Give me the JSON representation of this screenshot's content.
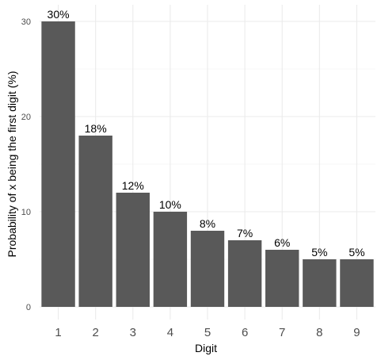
{
  "chart_data": {
    "type": "bar",
    "categories": [
      "1",
      "2",
      "3",
      "4",
      "5",
      "6",
      "7",
      "8",
      "9"
    ],
    "values": [
      30,
      18,
      12,
      10,
      8,
      7,
      6,
      5,
      5
    ],
    "data_labels": [
      "30%",
      "18%",
      "12%",
      "10%",
      "8%",
      "7%",
      "6%",
      "5%",
      "5%"
    ],
    "xlabel": "Digit",
    "ylabel": "Probability of x being the first digit (%)",
    "ylim": [
      0,
      31.6
    ],
    "yticks": [
      0,
      10,
      20,
      30
    ],
    "grid": true,
    "colors": {
      "bar": "#595959",
      "grid_major": "#ebebeb",
      "grid_minor": "#f5f5f5",
      "tick_text": "#4d4d4d"
    }
  }
}
